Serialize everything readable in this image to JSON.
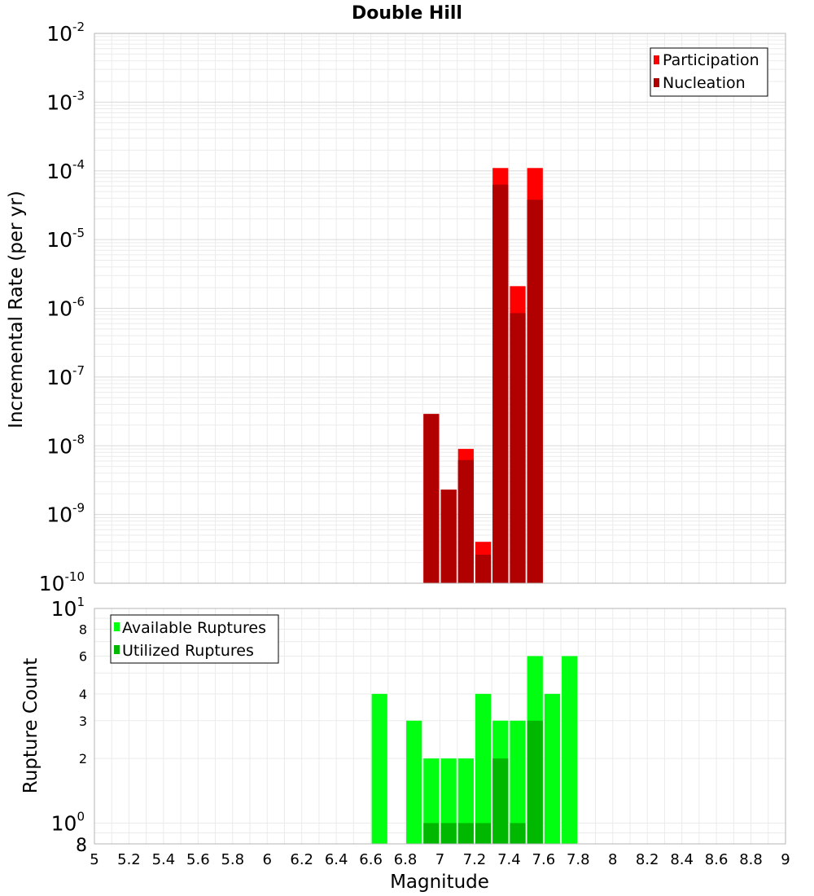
{
  "title": "Double Hill",
  "colors": {
    "participation": "#ff0000",
    "nucleation": "#b00000",
    "available": "#00ff11",
    "utilized": "#00b800",
    "grid": "#ebebeb",
    "frame": "#b5b5b5"
  },
  "chart_data": [
    {
      "type": "bar",
      "panel": "top",
      "ylabel": "Incremental Rate (per yr)",
      "xlabel": "",
      "yscale": "log",
      "ylim": [
        1e-10,
        0.01
      ],
      "xlim": [
        5,
        9
      ],
      "grid": true,
      "legend": {
        "position": "top-right",
        "entries": [
          "Participation",
          "Nucleation"
        ]
      },
      "ytick_labels": [
        {
          "exp": -2,
          "base": "10",
          "sup": "-2"
        },
        {
          "exp": -3,
          "base": "10",
          "sup": "-3"
        },
        {
          "exp": -4,
          "base": "10",
          "sup": "-4"
        },
        {
          "exp": -5,
          "base": "10",
          "sup": "-5"
        },
        {
          "exp": -6,
          "base": "10",
          "sup": "-6"
        },
        {
          "exp": -7,
          "base": "10",
          "sup": "-7"
        },
        {
          "exp": -8,
          "base": "10",
          "sup": "-8"
        },
        {
          "exp": -9,
          "base": "10",
          "sup": "-9"
        },
        {
          "exp": -10,
          "base": "10",
          "sup": "-10"
        }
      ],
      "x": [
        6.95,
        7.05,
        7.15,
        7.25,
        7.35,
        7.45,
        7.55
      ],
      "series": [
        {
          "name": "Participation",
          "values": [
            2.9e-08,
            2.3e-09,
            9e-09,
            4e-10,
            0.00011,
            2.1e-06,
            0.00011
          ]
        },
        {
          "name": "Nucleation",
          "values": [
            2.9e-08,
            2.3e-09,
            6.2e-09,
            2.6e-10,
            6.3e-05,
            8.5e-07,
            3.8e-05
          ]
        }
      ]
    },
    {
      "type": "bar",
      "panel": "bottom",
      "ylabel": "Rupture Count",
      "xlabel": "Magnitude",
      "yscale": "log",
      "ylim": [
        0.8,
        10
      ],
      "xlim": [
        5,
        9
      ],
      "grid": true,
      "legend": {
        "position": "top-left",
        "entries": [
          "Available Ruptures",
          "Utilized Ruptures"
        ]
      },
      "ytick_labels": [
        {
          "value": 10,
          "base": "10",
          "sup": "1",
          "big": true
        },
        {
          "value": 8,
          "label": "8"
        },
        {
          "value": 6,
          "label": "6"
        },
        {
          "value": 4,
          "label": "4"
        },
        {
          "value": 3,
          "label": "3"
        },
        {
          "value": 2,
          "label": "2"
        },
        {
          "value": 1,
          "base": "10",
          "sup": "0",
          "big": true
        },
        {
          "value": 0.8,
          "label": "8",
          "big": true
        }
      ],
      "xtick_labels": [
        "5",
        "5.2",
        "5.4",
        "5.6",
        "5.8",
        "6",
        "6.2",
        "6.4",
        "6.6",
        "6.8",
        "7",
        "7.2",
        "7.4",
        "7.6",
        "7.8",
        "8",
        "8.2",
        "8.4",
        "8.6",
        "8.8",
        "9"
      ],
      "x": [
        6.65,
        6.85,
        6.95,
        7.05,
        7.15,
        7.25,
        7.35,
        7.45,
        7.55,
        7.65,
        7.75
      ],
      "series": [
        {
          "name": "Available Ruptures",
          "values": [
            4,
            3,
            2,
            2,
            2,
            4,
            3,
            3,
            6,
            4,
            6
          ]
        },
        {
          "name": "Utilized Ruptures",
          "values": [
            0,
            0,
            1,
            1,
            1,
            1,
            2,
            1,
            3,
            0,
            0
          ]
        }
      ]
    }
  ]
}
